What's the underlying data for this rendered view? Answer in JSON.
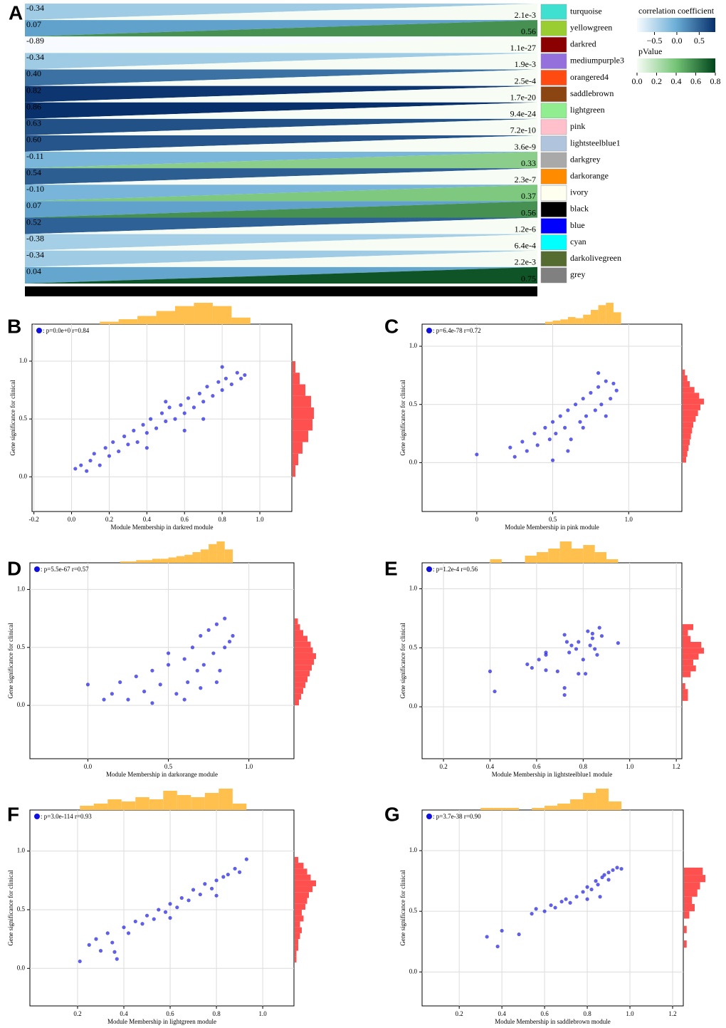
{
  "chart_data": [
    {
      "type": "module-trait",
      "panel": "A",
      "modules": [
        "turquoise",
        "yellowgreen",
        "darkred",
        "mediumpurple3",
        "orangered4",
        "saddlebrown",
        "lightgreen",
        "pink",
        "lightsteelblue1",
        "darkgrey",
        "darkorange",
        "ivory",
        "black",
        "blue",
        "cyan",
        "darkolivegreen",
        "grey"
      ],
      "module_colors": [
        "#40e0d0",
        "#9acd32",
        "#8b0000",
        "#9370db",
        "#ff4a12",
        "#8b4513",
        "#90ee90",
        "#ffc0cb",
        "#b0c4de",
        "#a9a9a9",
        "#ff8c00",
        "#fffff0",
        "#000000",
        "#0000ff",
        "#00ffff",
        "#556b2f",
        "#808080"
      ],
      "correlation": {
        "values": [
          -0.34,
          0.07,
          -0.89,
          -0.34,
          0.4,
          0.82,
          0.86,
          0.63,
          0.6,
          -0.11,
          0.54,
          -0.1,
          0.07,
          0.52,
          -0.38,
          -0.34,
          0.04
        ],
        "value_labels": [
          "-0.34",
          "0.07",
          "-0.89",
          "-0.34",
          "0.40",
          "0.82",
          "0.86",
          "0.63",
          "0.60",
          "-0.11",
          "0.54",
          "-0.10",
          "0.07",
          "0.52",
          "-0.38",
          "-0.34",
          "0.04"
        ],
        "lim": [
          -0.89,
          0.86
        ],
        "colors": [
          "#f7fbff",
          "#6baed6",
          "#08306b"
        ],
        "title": "correlation coefficient",
        "ticks": [
          {
            "value": -0.5,
            "label": "−0.5"
          },
          {
            "value": 0,
            "label": "0.0"
          },
          {
            "value": 0.5,
            "label": "0.5"
          }
        ]
      },
      "pvalue": {
        "values": [
          0.0021,
          0.56,
          1.1e-27,
          0.0019,
          0.00025,
          1.7e-20,
          9.4e-24,
          7.2e-10,
          3.6e-09,
          0.33,
          2.3e-07,
          0.37,
          0.56,
          1.2e-06,
          0.00064,
          0.0022,
          0.75
        ],
        "value_labels": [
          "2.1e-3",
          "0.56",
          "1.1e-27",
          "1.9e-3",
          "2.5e-4",
          "1.7e-20",
          "9.4e-24",
          "7.2e-10",
          "3.6e-9",
          "0.33",
          "2.3e-7",
          "0.37",
          "0.56",
          "1.2e-6",
          "6.4e-4",
          "2.2e-3",
          "0.75"
        ],
        "lim": [
          0,
          0.8
        ],
        "colors": [
          "#f7fcf5",
          "#74c476",
          "#00441b"
        ],
        "title": "pValue",
        "ticks": [
          {
            "value": 0,
            "label": "0.0"
          },
          0.2,
          0.4,
          0.6,
          0.8
        ]
      }
    },
    {
      "type": "scatter",
      "panel": "B",
      "legend": ": p=0.0e+0 r=0.84",
      "xlabel": "Module Membership in darkred module",
      "ylabel": "Gene significance for clinical",
      "xlim": [
        -0.21,
        1.17
      ],
      "ylim": [
        -0.3,
        1.32
      ],
      "xticks": [
        -0.2,
        {
          "value": 0,
          "label": "0.0"
        },
        0.2,
        0.4,
        0.6,
        0.8,
        {
          "value": 1,
          "label": "1.0"
        }
      ],
      "yticks": [
        {
          "value": 0,
          "label": "0.0"
        },
        0.5,
        {
          "value": 1,
          "label": "1.0"
        }
      ],
      "color": "#2a2ae0",
      "x": [
        0.02,
        0.05,
        0.08,
        0.1,
        0.12,
        0.15,
        0.18,
        0.2,
        0.22,
        0.25,
        0.28,
        0.3,
        0.33,
        0.35,
        0.38,
        0.4,
        0.42,
        0.45,
        0.48,
        0.5,
        0.52,
        0.55,
        0.58,
        0.6,
        0.62,
        0.65,
        0.68,
        0.7,
        0.72,
        0.75,
        0.78,
        0.8,
        0.82,
        0.85,
        0.88,
        0.9,
        0.92,
        0.6,
        0.7,
        0.5,
        0.4,
        0.8
      ],
      "y": [
        0.07,
        0.1,
        0.05,
        0.14,
        0.2,
        0.1,
        0.25,
        0.18,
        0.3,
        0.22,
        0.35,
        0.28,
        0.4,
        0.3,
        0.45,
        0.38,
        0.5,
        0.42,
        0.55,
        0.48,
        0.6,
        0.5,
        0.62,
        0.55,
        0.68,
        0.6,
        0.72,
        0.65,
        0.78,
        0.7,
        0.82,
        0.75,
        0.85,
        0.8,
        0.9,
        0.85,
        0.88,
        0.4,
        0.5,
        0.65,
        0.25,
        0.95
      ],
      "top_histogram": {
        "color": "#ffc04d",
        "bins": [
          0.15,
          0.25,
          0.35,
          0.45,
          0.55,
          0.65,
          0.75,
          0.85,
          0.95
        ],
        "counts": [
          3,
          6,
          10,
          16,
          22,
          26,
          22,
          8
        ]
      },
      "right_histogram": {
        "color": "#ff5050",
        "bins": [
          0,
          0.1,
          0.2,
          0.3,
          0.4,
          0.5,
          0.6,
          0.7,
          0.8,
          0.9,
          1.0
        ],
        "counts": [
          4,
          8,
          14,
          22,
          28,
          30,
          26,
          18,
          10,
          4
        ]
      }
    },
    {
      "type": "scatter",
      "panel": "C",
      "legend": ": p=6.4e-78 r=0.72",
      "xlabel": "Module Membership in pink module",
      "ylabel": "Gene significance for clinical",
      "xlim": [
        -0.36,
        1.35
      ],
      "ylim": [
        -0.42,
        1.19
      ],
      "xticks": [
        0,
        0.5,
        {
          "value": 1,
          "label": "1.0"
        }
      ],
      "yticks": [
        {
          "value": 0,
          "label": "0.0"
        },
        0.5,
        {
          "value": 1,
          "label": "1.0"
        }
      ],
      "color": "#2a2ae0",
      "x": [
        0,
        0.22,
        0.25,
        0.3,
        0.33,
        0.38,
        0.4,
        0.45,
        0.48,
        0.5,
        0.52,
        0.55,
        0.58,
        0.6,
        0.62,
        0.65,
        0.68,
        0.7,
        0.72,
        0.75,
        0.78,
        0.8,
        0.82,
        0.85,
        0.88,
        0.9,
        0.92,
        0.5,
        0.6,
        0.7,
        0.8,
        0.85
      ],
      "y": [
        0.07,
        0.13,
        0.05,
        0.18,
        0.1,
        0.25,
        0.15,
        0.3,
        0.2,
        0.35,
        0.25,
        0.4,
        0.3,
        0.45,
        0.2,
        0.5,
        0.35,
        0.55,
        0.4,
        0.6,
        0.45,
        0.65,
        0.5,
        0.7,
        0.55,
        0.68,
        0.62,
        0.02,
        0.1,
        0.3,
        0.77,
        0.4
      ],
      "top_histogram": {
        "color": "#ffc04d",
        "bins": [
          0.45,
          0.5,
          0.55,
          0.6,
          0.65,
          0.7,
          0.75,
          0.8,
          0.85,
          0.9,
          0.95
        ],
        "counts": [
          2,
          3,
          4,
          6,
          5,
          8,
          12,
          16,
          18,
          10
        ]
      },
      "right_histogram": {
        "color": "#ff5050",
        "bins": [
          0,
          0.05,
          0.1,
          0.15,
          0.2,
          0.25,
          0.3,
          0.35,
          0.4,
          0.45,
          0.5,
          0.55,
          0.6,
          0.65,
          0.7,
          0.75,
          0.8
        ],
        "counts": [
          3,
          4,
          5,
          6,
          7,
          8,
          9,
          11,
          13,
          15,
          18,
          14,
          10,
          6,
          4,
          2
        ]
      }
    },
    {
      "type": "scatter",
      "panel": "D",
      "legend": ": p=5.5e-67 r=0.57",
      "xlabel": "Module Membership in darkorange module",
      "ylabel": "Gene significance for clinical",
      "xlim": [
        -0.36,
        1.28
      ],
      "ylim": [
        -0.46,
        1.23
      ],
      "xticks": [
        {
          "value": 0,
          "label": "0.0"
        },
        0.5,
        {
          "value": 1,
          "label": "1.0"
        }
      ],
      "yticks": [
        {
          "value": 0,
          "label": "0.0"
        },
        0.5,
        {
          "value": 1,
          "label": "1.0"
        }
      ],
      "color": "#2a2ae0",
      "x": [
        0,
        0.1,
        0.15,
        0.2,
        0.25,
        0.3,
        0.35,
        0.4,
        0.45,
        0.5,
        0.55,
        0.6,
        0.62,
        0.65,
        0.68,
        0.7,
        0.72,
        0.75,
        0.78,
        0.8,
        0.82,
        0.85,
        0.88,
        0.9,
        0.6,
        0.7,
        0.8,
        0.85,
        0.5,
        0.4
      ],
      "y": [
        0.18,
        0.05,
        0.1,
        0.2,
        0.05,
        0.25,
        0.12,
        0.3,
        0.18,
        0.35,
        0.1,
        0.4,
        0.2,
        0.5,
        0.3,
        0.6,
        0.35,
        0.65,
        0.45,
        0.7,
        0.3,
        0.75,
        0.55,
        0.6,
        0.05,
        0.15,
        0.2,
        0.5,
        0.45,
        0.02
      ],
      "top_histogram": {
        "color": "#ffc04d",
        "bins": [
          0.2,
          0.25,
          0.3,
          0.35,
          0.4,
          0.45,
          0.5,
          0.55,
          0.6,
          0.65,
          0.7,
          0.75,
          0.8,
          0.85,
          0.9
        ],
        "counts": [
          1,
          1,
          2,
          2,
          3,
          3,
          4,
          5,
          6,
          8,
          10,
          14,
          16,
          10
        ]
      },
      "right_histogram": {
        "color": "#ff5050",
        "bins": [
          0,
          0.05,
          0.1,
          0.15,
          0.2,
          0.25,
          0.3,
          0.35,
          0.4,
          0.45,
          0.5,
          0.55,
          0.6,
          0.65,
          0.7,
          0.75
        ],
        "counts": [
          4,
          6,
          8,
          10,
          12,
          14,
          16,
          18,
          20,
          17,
          15,
          12,
          8,
          5,
          3
        ]
      }
    },
    {
      "type": "scatter",
      "panel": "E",
      "legend": ": p=1.2e-4 r=0.56",
      "xlabel": "Module Membership in lightsteelblue1 module",
      "ylabel": "Gene significance for clinical",
      "xlim": [
        0.108,
        1.224
      ],
      "ylim": [
        -0.44,
        1.22
      ],
      "xticks": [
        0.2,
        0.4,
        0.6,
        0.8,
        {
          "value": 1,
          "label": "1.0"
        },
        1.2
      ],
      "yticks": [
        {
          "value": 0,
          "label": "0.0"
        },
        0.5,
        {
          "value": 1,
          "label": "1.0"
        }
      ],
      "color": "#2a2ae0",
      "x": [
        0.4,
        0.42,
        0.56,
        0.58,
        0.61,
        0.64,
        0.64,
        0.64,
        0.69,
        0.72,
        0.73,
        0.72,
        0.72,
        0.74,
        0.75,
        0.77,
        0.78,
        0.78,
        0.8,
        0.81,
        0.82,
        0.83,
        0.84,
        0.85,
        0.86,
        0.87,
        0.88,
        0.95,
        0.84
      ],
      "y": [
        0.3,
        0.13,
        0.36,
        0.33,
        0.4,
        0.46,
        0.31,
        0.44,
        0.3,
        0.61,
        0.55,
        0.16,
        0.1,
        0.46,
        0.52,
        0.49,
        0.55,
        0.28,
        0.4,
        0.28,
        0.64,
        0.52,
        0.58,
        0.49,
        0.44,
        0.67,
        0.6,
        0.54,
        0.62
      ],
      "top_histogram": {
        "color": "#ffc04d",
        "bins": [
          0.4,
          0.45,
          0.5,
          0.55,
          0.6,
          0.65,
          0.7,
          0.75,
          0.8,
          0.85,
          0.9,
          0.95
        ],
        "counts": [
          1,
          0,
          0,
          2,
          3,
          4,
          6,
          4,
          5,
          3,
          1
        ]
      },
      "right_histogram": {
        "color": "#ff5050",
        "bins": [
          0.05,
          0.1,
          0.15,
          0.2,
          0.25,
          0.3,
          0.35,
          0.4,
          0.45,
          0.5,
          0.55,
          0.6,
          0.65,
          0.7
        ],
        "counts": [
          2,
          2,
          1,
          0,
          3,
          5,
          4,
          6,
          8,
          7,
          3,
          2,
          4
        ]
      }
    },
    {
      "type": "scatter",
      "panel": "F",
      "legend": ": p=3.0e-114 r=0.93",
      "xlabel": "Module Membership in lightgreen module",
      "ylabel": "Gene significance for clinical",
      "xlim": [
        -0.006,
        1.135
      ],
      "ylim": [
        -0.32,
        1.35
      ],
      "xticks": [
        0.2,
        0.4,
        0.6,
        0.8,
        {
          "value": 1,
          "label": "1.0"
        }
      ],
      "yticks": [
        {
          "value": 0,
          "label": "0.0"
        },
        0.5,
        {
          "value": 1,
          "label": "1.0"
        }
      ],
      "color": "#2a2ae0",
      "x": [
        0.21,
        0.25,
        0.28,
        0.3,
        0.33,
        0.35,
        0.37,
        0.4,
        0.42,
        0.45,
        0.48,
        0.5,
        0.53,
        0.55,
        0.58,
        0.6,
        0.63,
        0.65,
        0.68,
        0.7,
        0.73,
        0.75,
        0.78,
        0.8,
        0.83,
        0.85,
        0.88,
        0.9,
        0.93,
        0.36,
        0.6,
        0.8
      ],
      "y": [
        0.06,
        0.2,
        0.25,
        0.15,
        0.3,
        0.22,
        0.08,
        0.35,
        0.3,
        0.4,
        0.38,
        0.45,
        0.42,
        0.5,
        0.48,
        0.55,
        0.52,
        0.6,
        0.58,
        0.67,
        0.63,
        0.72,
        0.68,
        0.75,
        0.78,
        0.8,
        0.85,
        0.82,
        0.93,
        0.14,
        0.43,
        0.62
      ],
      "top_histogram": {
        "color": "#ffc04d",
        "bins": [
          0.21,
          0.27,
          0.33,
          0.39,
          0.45,
          0.51,
          0.57,
          0.63,
          0.69,
          0.75,
          0.81,
          0.87,
          0.93
        ],
        "counts": [
          2,
          3,
          5,
          4,
          6,
          5,
          9,
          7,
          6,
          8,
          10,
          3
        ]
      },
      "right_histogram": {
        "color": "#ff5050",
        "bins": [
          0.05,
          0.1,
          0.15,
          0.2,
          0.25,
          0.3,
          0.35,
          0.4,
          0.45,
          0.5,
          0.55,
          0.6,
          0.65,
          0.7,
          0.75,
          0.8,
          0.85,
          0.9,
          0.95
        ],
        "counts": [
          1,
          1,
          2,
          2,
          3,
          4,
          3,
          5,
          4,
          6,
          7,
          8,
          10,
          12,
          9,
          7,
          5,
          2
        ]
      }
    },
    {
      "type": "scatter",
      "panel": "G",
      "legend": ": p=3.7e-38 r=0.90",
      "xlabel": "Module Membership in saddlebrown module",
      "ylabel": "Gene significance for clinical",
      "xlim": [
        0.026,
        1.25
      ],
      "ylim": [
        -0.28,
        1.335
      ],
      "xticks": [
        0.2,
        0.4,
        0.6,
        0.8,
        {
          "value": 1,
          "label": "1.0"
        },
        1.2
      ],
      "yticks": [
        {
          "value": 0,
          "label": "0.0"
        },
        0.5,
        {
          "value": 1,
          "label": "1.0"
        }
      ],
      "color": "#2a2ae0",
      "x": [
        0.33,
        0.38,
        0.4,
        0.48,
        0.54,
        0.56,
        0.6,
        0.63,
        0.65,
        0.68,
        0.7,
        0.72,
        0.75,
        0.78,
        0.8,
        0.82,
        0.84,
        0.85,
        0.87,
        0.88,
        0.9,
        0.92,
        0.94,
        0.96,
        0.86,
        0.8,
        0.9
      ],
      "y": [
        0.29,
        0.21,
        0.34,
        0.31,
        0.48,
        0.52,
        0.5,
        0.55,
        0.53,
        0.58,
        0.6,
        0.57,
        0.62,
        0.66,
        0.7,
        0.68,
        0.75,
        0.72,
        0.78,
        0.8,
        0.82,
        0.84,
        0.86,
        0.85,
        0.62,
        0.6,
        0.76
      ],
      "top_histogram": {
        "color": "#ffc04d",
        "bins": [
          0.3,
          0.36,
          0.42,
          0.48,
          0.54,
          0.6,
          0.66,
          0.72,
          0.78,
          0.84,
          0.9,
          0.96
        ],
        "counts": [
          1,
          1,
          1,
          0,
          1,
          2,
          3,
          5,
          8,
          10,
          4
        ]
      },
      "right_histogram": {
        "color": "#ff5050",
        "bins": [
          0.2,
          0.26,
          0.32,
          0.38,
          0.44,
          0.5,
          0.56,
          0.62,
          0.68,
          0.74,
          0.8,
          0.86
        ],
        "counts": [
          1,
          0,
          1,
          0,
          2,
          4,
          3,
          5,
          6,
          8,
          7
        ]
      }
    }
  ]
}
